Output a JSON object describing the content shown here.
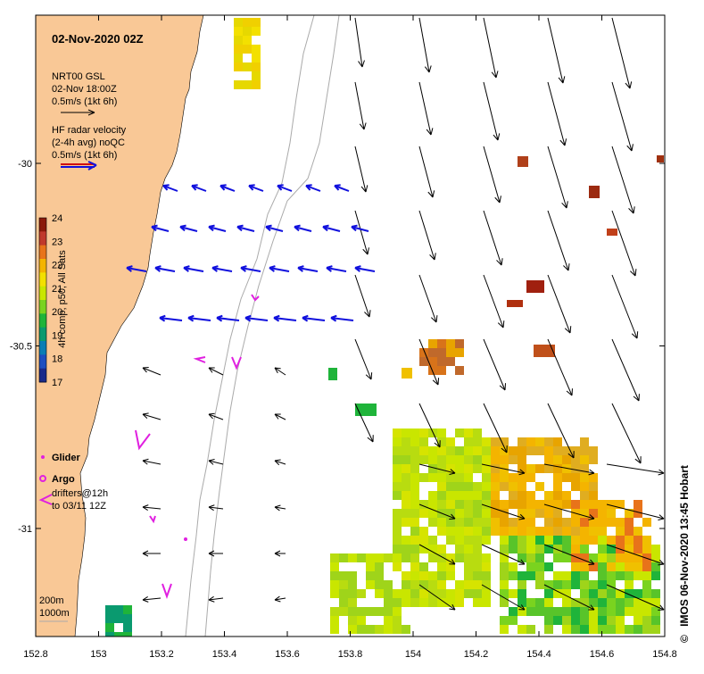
{
  "map": {
    "title": "02-Nov-2020 02Z",
    "model_legend": {
      "name": "NRT00 GSL",
      "time": "02-Nov 18:00Z",
      "scale": "0.5m/s (1kt 6h)"
    },
    "radar_legend": {
      "line1": "HF radar velocity",
      "line2": "(2-4h avg) noQC",
      "scale": "0.5m/s (1kt 6h)"
    },
    "colorbar": {
      "label": "4h comp, p50, All Sats",
      "ticks": [
        "24",
        "23",
        "22",
        "21",
        "20",
        "19",
        "18",
        "17"
      ],
      "colors": [
        "#8b1a0a",
        "#c0392b",
        "#e8731a",
        "#f4b400",
        "#f3e000",
        "#c9e600",
        "#7ad31f",
        "#1fb43a",
        "#0a9a6f",
        "#0b7db4",
        "#1d4fc0",
        "#1a2a8a"
      ]
    },
    "markers": {
      "glider": "Glider",
      "argo": "Argo",
      "drifters_1": "drifters@12h",
      "drifters_2": "to 03/11 12Z"
    },
    "depth_legend": {
      "line1": "200m",
      "line2": "1000m"
    },
    "x_axis": {
      "ticks": [
        "152.8",
        "153",
        "153.2",
        "153.4",
        "153.6",
        "153.8",
        "154",
        "154.2",
        "154.4",
        "154.6",
        "154.8"
      ]
    },
    "y_axis": {
      "ticks": [
        "-30",
        "-30.5",
        "-31"
      ]
    },
    "footer": "IMOS 06-Nov-2020 13:45 Hobart",
    "copyright": "©",
    "colors": {
      "land": "#f9c896",
      "model_arrow": "#000000",
      "radar_arrow": "#1010dd",
      "marker": "#e020e0",
      "isobath": "#aaaaaa"
    }
  }
}
